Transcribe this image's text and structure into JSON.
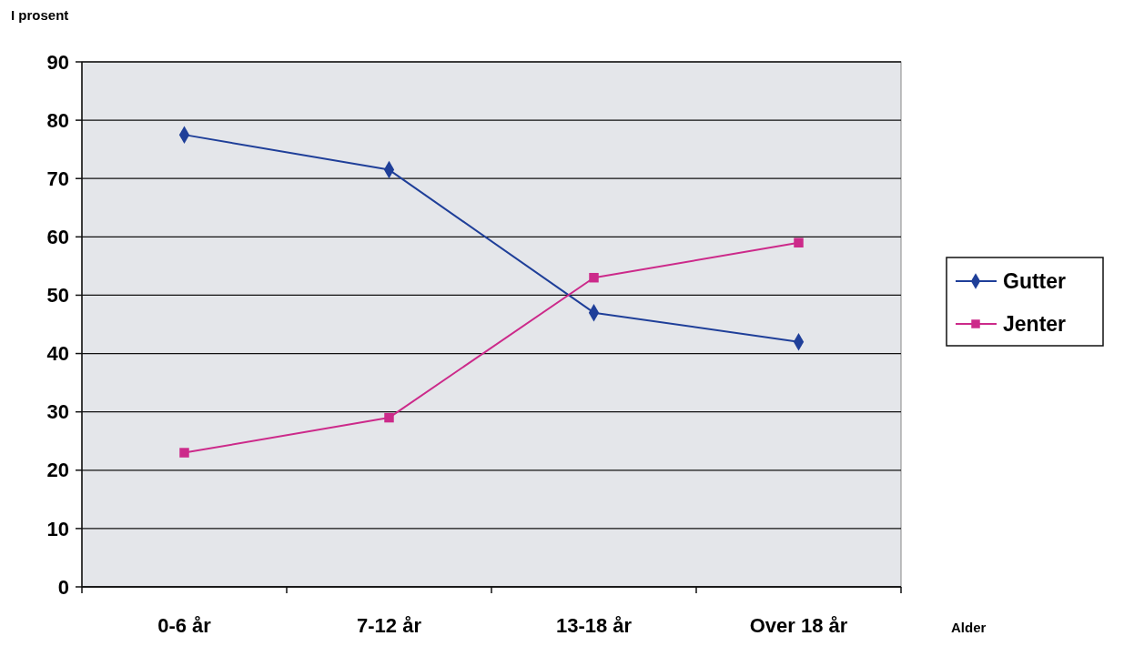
{
  "chart_data": {
    "type": "line",
    "ylabel": "I prosent",
    "xlabel": "Alder",
    "categories": [
      "0-6 år",
      "7-12 år",
      "13-18 år",
      "Over 18 år"
    ],
    "series": [
      {
        "name": "Gutter",
        "color": "#1f3f99",
        "values": [
          77.5,
          71.5,
          47,
          42
        ],
        "marker": "diamond"
      },
      {
        "name": "Jenter",
        "color": "#cc2a8a",
        "values": [
          23,
          29,
          53,
          59
        ],
        "marker": "square"
      }
    ],
    "ylim": [
      0,
      90
    ],
    "yticks": [
      0,
      10,
      20,
      30,
      40,
      50,
      60,
      70,
      80,
      90
    ],
    "grid": "y",
    "legend": "right"
  }
}
